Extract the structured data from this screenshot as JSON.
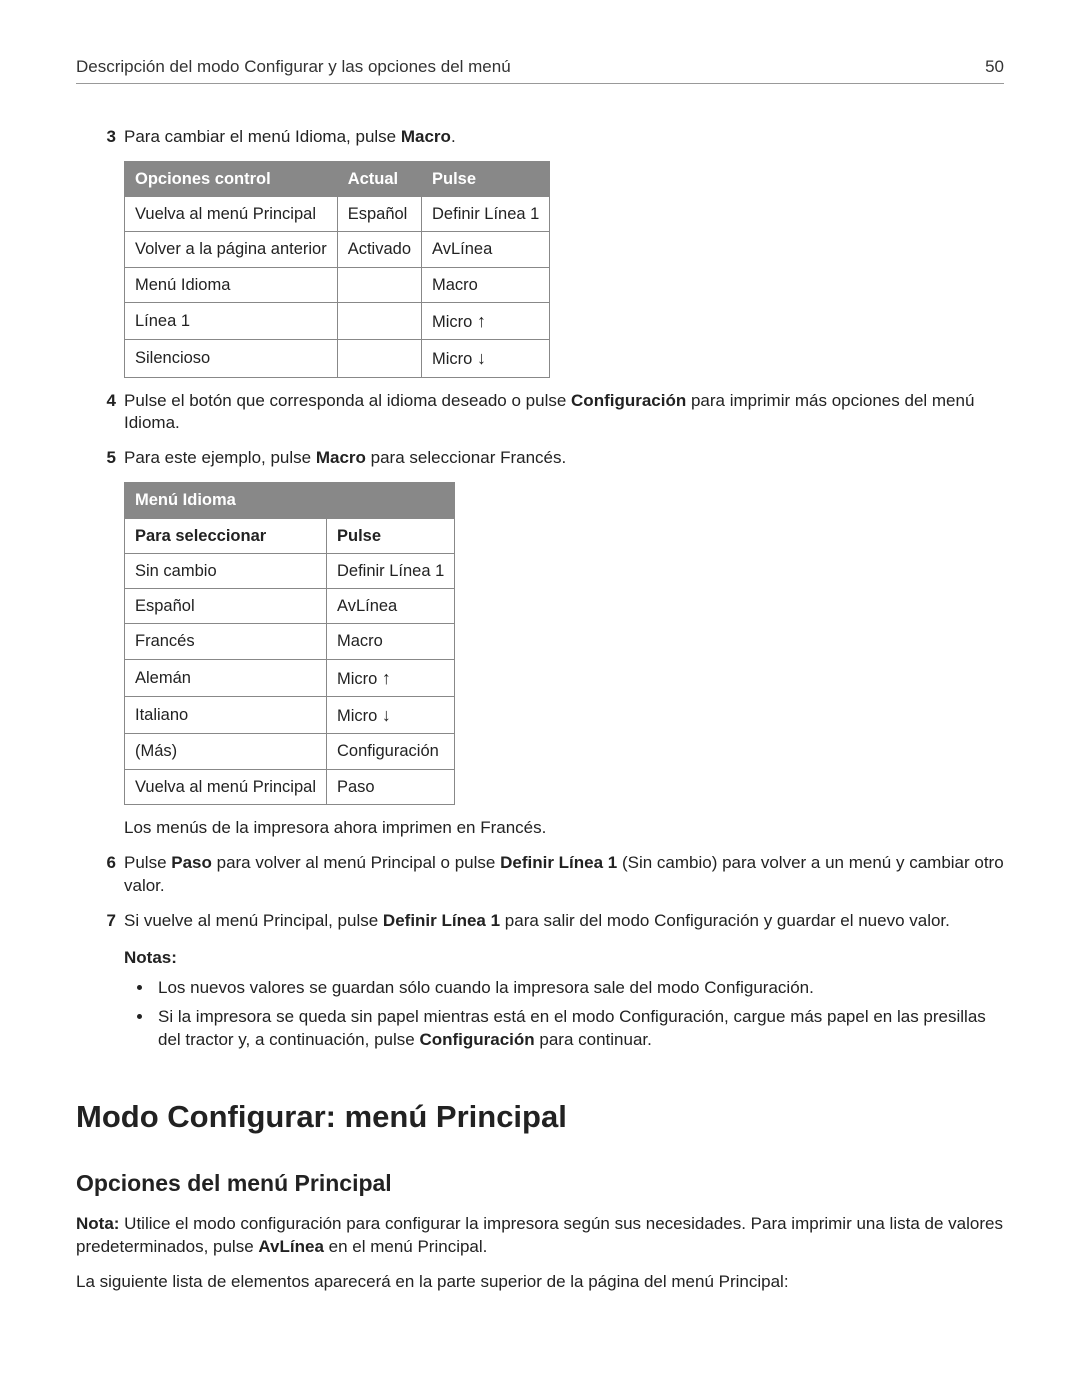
{
  "header": {
    "title": "Descripción del modo Configurar y las opciones del menú",
    "page_number": "50"
  },
  "step3": {
    "num": "3",
    "text_before": "Para cambiar el menú Idioma, pulse ",
    "text_bold": "Macro",
    "text_after": "."
  },
  "table1": {
    "headers": [
      "Opciones control",
      "Actual",
      "Pulse"
    ],
    "rows": [
      [
        "Vuelva al menú Principal",
        "Español",
        "Definir Línea 1"
      ],
      [
        "Volver a la página anterior",
        "Activado",
        "AvLínea"
      ],
      [
        "Menú Idioma",
        "",
        "Macro"
      ],
      [
        "Línea 1",
        "",
        "Micro ↑"
      ],
      [
        "Silencioso",
        "",
        "Micro ↓"
      ]
    ]
  },
  "step4": {
    "num": "4",
    "before": "Pulse el botón que corresponda al idioma deseado o pulse ",
    "bold": "Configuración",
    "after": " para imprimir más opciones del menú Idioma."
  },
  "step5": {
    "num": "5",
    "before": "Para este ejemplo, pulse ",
    "bold": "Macro",
    "after": " para seleccionar Francés."
  },
  "table2": {
    "title": "Menú Idioma",
    "subhead": [
      "Para seleccionar",
      "Pulse"
    ],
    "rows": [
      [
        "Sin cambio",
        "Definir Línea 1"
      ],
      [
        "Español",
        "AvLínea"
      ],
      [
        "Francés",
        "Macro"
      ],
      [
        "Alemán",
        "Micro ↑"
      ],
      [
        "Italiano",
        "Micro ↓"
      ],
      [
        "(Más)",
        "Configuración"
      ],
      [
        "Vuelva al menú Principal",
        "Paso"
      ]
    ]
  },
  "post_table2": "Los menús de la impresora ahora imprimen en Francés.",
  "step6": {
    "num": "6",
    "p1": "Pulse ",
    "b1": "Paso",
    "p2": " para volver al menú Principal o pulse ",
    "b2": "Definir Línea 1",
    "p3": " (Sin cambio) para volver a un menú y cambiar otro valor."
  },
  "step7": {
    "num": "7",
    "p1": "Si vuelve al menú Principal, pulse ",
    "b1": "Definir Línea 1",
    "p2": " para salir del modo Configuración y guardar el nuevo valor."
  },
  "notes": {
    "label": "Notas:",
    "items": [
      {
        "plain": "Los nuevos valores se guardan sólo cuando la impresora sale del modo Configuración."
      },
      {
        "p1": "Si la impresora se queda sin papel mientras está en el modo Configuración, cargue más papel en las presillas del tractor y, a continuación, pulse ",
        "b": "Configuración",
        "p2": " para continuar."
      }
    ]
  },
  "h1": "Modo Configurar: menú Principal",
  "h2": "Opciones del menú Principal",
  "nota_para": {
    "b": "Nota:",
    "p1": " Utilice el modo configuración para configurar la impresora según sus necesidades. Para imprimir una lista de valores predeterminados, pulse ",
    "b2": "AvLínea",
    "p2": " en el menú Principal."
  },
  "last_para": "La siguiente lista de elementos aparecerá en la parte superior de la página del menú Principal:"
}
